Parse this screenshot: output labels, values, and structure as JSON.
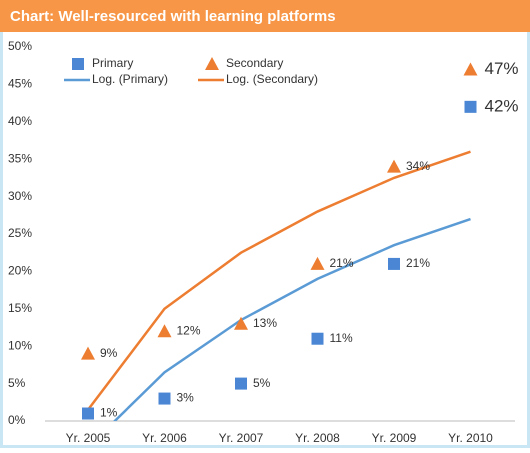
{
  "chart_data": {
    "type": "scatter",
    "title": "Chart: Well-resourced with learning platforms",
    "categories": [
      "Yr. 2005",
      "Yr. 2006",
      "Yr. 2007",
      "Yr. 2008",
      "Yr. 2009",
      "Yr. 2010"
    ],
    "series": [
      {
        "name": "Primary",
        "color": "#4a86d4",
        "marker": "square",
        "values": [
          1,
          3,
          5,
          11,
          21,
          42
        ],
        "value_labels": [
          "1%",
          "3%",
          "5%",
          "11%",
          "21%",
          "42%"
        ]
      },
      {
        "name": "Secondary",
        "color": "#ed7d31",
        "marker": "triangle",
        "values": [
          9,
          12,
          13,
          21,
          34,
          47
        ],
        "value_labels": [
          "9%",
          "12%",
          "13%",
          "21%",
          "34%",
          "47%"
        ]
      }
    ],
    "trendlines": [
      {
        "name": "Log. (Primary)",
        "color": "#5b9bd5",
        "values": [
          -3.5,
          6.5,
          13.5,
          19,
          23.5,
          27
        ]
      },
      {
        "name": "Log. (Secondary)",
        "color": "#ed7d31",
        "values": [
          1.5,
          15,
          22.5,
          28,
          32.5,
          36
        ]
      }
    ],
    "ylim": [
      0,
      50
    ],
    "yticks": [
      {
        "value": 0,
        "label": "0%"
      },
      {
        "value": 5,
        "label": "5%"
      },
      {
        "value": 10,
        "label": "10%"
      },
      {
        "value": 15,
        "label": "15%"
      },
      {
        "value": 20,
        "label": "20%"
      },
      {
        "value": 25,
        "label": "25%"
      },
      {
        "value": 30,
        "label": "30%"
      },
      {
        "value": 35,
        "label": "35%"
      },
      {
        "value": 40,
        "label": "40%"
      },
      {
        "value": 45,
        "label": "45%"
      },
      {
        "value": 50,
        "label": "50%"
      }
    ]
  }
}
